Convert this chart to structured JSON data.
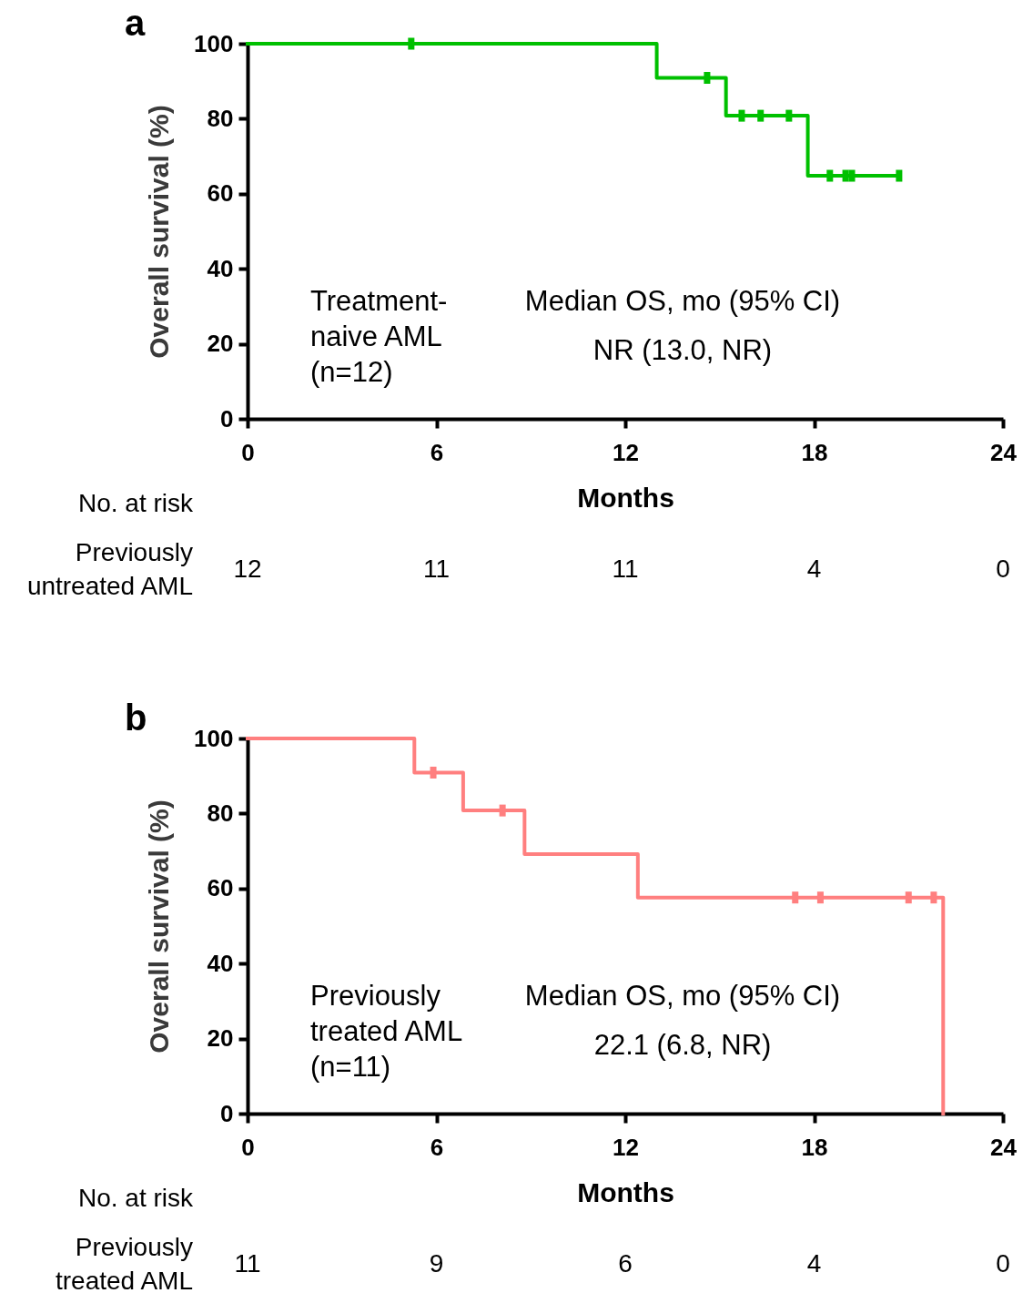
{
  "chart_data": [
    {
      "type": "step",
      "title": "a",
      "xlabel": "Months",
      "ylabel": "Overall survival (%)",
      "xlim": [
        0,
        24
      ],
      "xticks": [
        0,
        6,
        12,
        18,
        24
      ],
      "ylim": [
        0,
        100
      ],
      "yticks": [
        0,
        20,
        40,
        60,
        80,
        100
      ],
      "series": [
        {
          "type": "step",
          "color": "#00c000",
          "x": [
            0,
            13,
            15.2,
            17.8,
            20.7
          ],
          "values": [
            100,
            90.9,
            80.8,
            64.8,
            64.8
          ]
        },
        {
          "type": "scatter",
          "color": "#00c000",
          "x": [
            5.2,
            14.6,
            15.7,
            16.3,
            17.2,
            18.5,
            19.0,
            19.2,
            20.7
          ],
          "values": [
            100,
            90.9,
            80.8,
            80.8,
            80.8,
            64.8,
            64.8,
            64.8,
            64.8
          ]
        }
      ],
      "annotations": [
        "Treatment-\nnaive AML\n(n=12)",
        "Median OS, mo (95% CI)\nNR (13.0, NR)",
        "No. at risk",
        "Previously\nuntreated AML",
        "12",
        "11",
        "11",
        "4",
        "0"
      ]
    },
    {
      "type": "step",
      "title": "b",
      "xlabel": "Months",
      "ylabel": "Overall survival (%)",
      "xlim": [
        0,
        24
      ],
      "xticks": [
        0,
        6,
        12,
        18,
        24
      ],
      "ylim": [
        0,
        100
      ],
      "yticks": [
        0,
        20,
        40,
        60,
        80,
        100
      ],
      "series": [
        {
          "type": "step",
          "color": "#ff7f7f",
          "x": [
            0,
            5.3,
            6.85,
            8.8,
            12.4,
            22.1
          ],
          "values": [
            100,
            90.9,
            80.8,
            69.2,
            57.6,
            0
          ]
        },
        {
          "type": "scatter",
          "color": "#ff7f7f",
          "x": [
            5.9,
            8.1,
            17.4,
            18.2,
            21.0,
            21.8
          ],
          "values": [
            90.9,
            80.8,
            57.6,
            57.6,
            57.6,
            57.6
          ]
        }
      ],
      "annotations": [
        "Previously\ntreated AML\n(n=11)",
        "Median OS, mo (95% CI)\n22.1 (6.8, NR)",
        "No. at risk",
        "Previously\ntreated AML",
        "11",
        "9",
        "6",
        "4",
        "0"
      ]
    }
  ]
}
